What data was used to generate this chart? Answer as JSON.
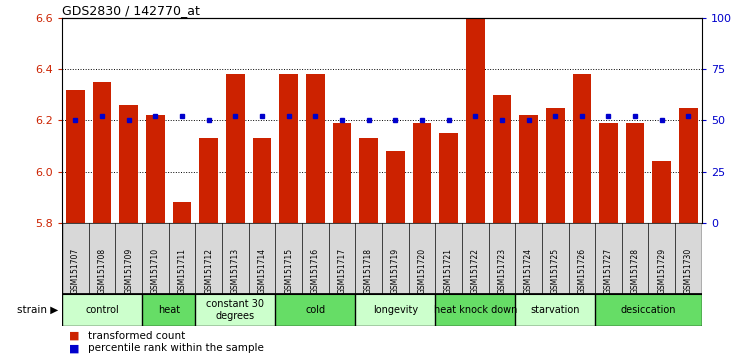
{
  "title": "GDS2830 / 142770_at",
  "samples": [
    "GSM151707",
    "GSM151708",
    "GSM151709",
    "GSM151710",
    "GSM151711",
    "GSM151712",
    "GSM151713",
    "GSM151714",
    "GSM151715",
    "GSM151716",
    "GSM151717",
    "GSM151718",
    "GSM151719",
    "GSM151720",
    "GSM151721",
    "GSM151722",
    "GSM151723",
    "GSM151724",
    "GSM151725",
    "GSM151726",
    "GSM151727",
    "GSM151728",
    "GSM151729",
    "GSM151730"
  ],
  "transformed_count": [
    6.32,
    6.35,
    6.26,
    6.22,
    5.88,
    6.13,
    6.38,
    6.13,
    6.38,
    6.38,
    6.19,
    6.13,
    6.08,
    6.19,
    6.15,
    6.6,
    6.3,
    6.22,
    6.25,
    6.38,
    6.19,
    6.19,
    6.04,
    6.25
  ],
  "percentile_rank": [
    50,
    52,
    50,
    52,
    52,
    50,
    52,
    52,
    52,
    52,
    50,
    50,
    50,
    50,
    50,
    52,
    50,
    50,
    52,
    52,
    52,
    52,
    50,
    52
  ],
  "ylim_left": [
    5.8,
    6.6
  ],
  "ylim_right": [
    0,
    100
  ],
  "yticks_left": [
    5.8,
    6.0,
    6.2,
    6.4,
    6.6
  ],
  "yticks_right": [
    0,
    25,
    50,
    75,
    100
  ],
  "bar_color": "#cc2200",
  "dot_color": "#0000cc",
  "groups": [
    {
      "label": "control",
      "start": 0,
      "end": 3
    },
    {
      "label": "heat",
      "start": 3,
      "end": 5
    },
    {
      "label": "constant 30\ndegrees",
      "start": 5,
      "end": 8
    },
    {
      "label": "cold",
      "start": 8,
      "end": 11
    },
    {
      "label": "longevity",
      "start": 11,
      "end": 14
    },
    {
      "label": "heat knock down",
      "start": 14,
      "end": 17
    },
    {
      "label": "starvation",
      "start": 17,
      "end": 20
    },
    {
      "label": "desiccation",
      "start": 20,
      "end": 24
    }
  ],
  "legend_labels": [
    "transformed count",
    "percentile rank within the sample"
  ],
  "legend_colors": [
    "#cc2200",
    "#0000cc"
  ],
  "baseline": 5.8,
  "bg_gray": "#d8d8d8",
  "bg_green_light": "#ccffcc",
  "bg_green_dark": "#44dd44"
}
